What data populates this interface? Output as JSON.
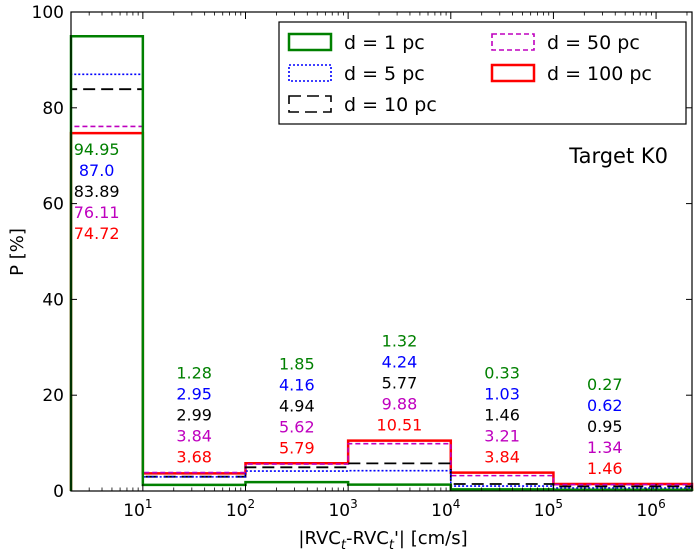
{
  "chart_data": {
    "type": "histogram-step",
    "title_annotation": "Target K0",
    "xlabel": "|RVC",
    "xlabel_sub1": "t",
    "xlabel_mid": "-RVC",
    "xlabel_sub2": "t",
    "xlabel_end": "'| [cm/s]",
    "ylabel": "P [%]",
    "xscale": "log",
    "xlim_log10": [
      0.3,
      6.35
    ],
    "ylim": [
      0,
      100
    ],
    "yticks": [
      {
        "value": 0,
        "label": "0"
      },
      {
        "value": 20,
        "label": "20"
      },
      {
        "value": 40,
        "label": "40"
      },
      {
        "value": 60,
        "label": "60"
      },
      {
        "value": 80,
        "label": "80"
      },
      {
        "value": 100,
        "label": "100"
      }
    ],
    "xticks": [
      {
        "exp": 1,
        "base": "10",
        "sup": "1"
      },
      {
        "exp": 2,
        "base": "10",
        "sup": "2"
      },
      {
        "exp": 3,
        "base": "10",
        "sup": "3"
      },
      {
        "exp": 4,
        "base": "10",
        "sup": "4"
      },
      {
        "exp": 5,
        "base": "10",
        "sup": "5"
      },
      {
        "exp": 6,
        "base": "10",
        "sup": "6"
      }
    ],
    "bin_edges_log10": [
      0.3,
      1,
      2,
      3,
      4,
      5,
      6.35
    ],
    "label_positions_log10": [
      0.55,
      1.5,
      2.5,
      3.5,
      4.5,
      5.5
    ],
    "series": [
      {
        "name": "d = 1 pc",
        "color": "#008000",
        "style": "solid",
        "values": [
          94.95,
          1.28,
          1.85,
          1.32,
          0.33,
          0.27
        ]
      },
      {
        "name": "d = 5 pc",
        "color": "#0000ff",
        "style": "dotted",
        "values": [
          87.0,
          2.95,
          4.16,
          4.24,
          1.03,
          0.62
        ]
      },
      {
        "name": "d = 10 pc",
        "color": "#000000",
        "style": "dashed",
        "values": [
          83.89,
          2.99,
          4.94,
          5.77,
          1.46,
          0.95
        ]
      },
      {
        "name": "d = 50 pc",
        "color": "#bf00bf",
        "style": "dashed-fine",
        "values": [
          76.11,
          3.84,
          5.62,
          9.88,
          3.21,
          1.34
        ]
      },
      {
        "name": "d = 100 pc",
        "color": "#ff0000",
        "style": "solid",
        "values": [
          74.72,
          3.68,
          5.79,
          10.51,
          3.84,
          1.46
        ]
      }
    ],
    "value_labels": [
      [
        "94.95",
        "87.0",
        "83.89",
        "76.11",
        "74.72"
      ],
      [
        "1.28",
        "2.95",
        "2.99",
        "3.84",
        "3.68"
      ],
      [
        "1.85",
        "4.16",
        "4.94",
        "5.62",
        "5.79"
      ],
      [
        "1.32",
        "4.24",
        "5.77",
        "9.88",
        "10.51"
      ],
      [
        "0.33",
        "1.03",
        "1.46",
        "3.21",
        "3.84"
      ],
      [
        "0.27",
        "0.62",
        "0.95",
        "1.34",
        "1.46"
      ]
    ],
    "legend": {
      "placement": "top-right",
      "columns": 2,
      "entries": [
        {
          "series": 0,
          "label": "d = 1 pc"
        },
        {
          "series": 1,
          "label": "d = 5 pc"
        },
        {
          "series": 2,
          "label": "d = 10 pc"
        },
        {
          "series": 3,
          "label": "d = 50 pc"
        },
        {
          "series": 4,
          "label": "d = 100 pc"
        }
      ]
    }
  }
}
